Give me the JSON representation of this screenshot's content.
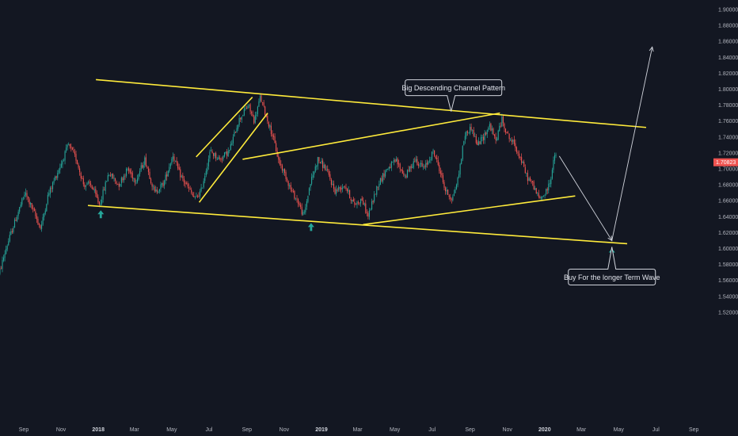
{
  "chart_data": {
    "type": "candlestick",
    "title": "",
    "colors": {
      "background": "#131722",
      "up": "#26a69a",
      "down": "#ef5350",
      "trendline": "#ffeb3b",
      "projection": "#d1d4dc",
      "arrow": "#26a69a",
      "last_price": "#ef5350"
    },
    "y_axis": {
      "ylim": [
        1.51,
        1.915
      ],
      "ticks": [
        "1.90000",
        "1.88000",
        "1.86000",
        "1.84000",
        "1.82000",
        "1.80000",
        "1.78000",
        "1.76000",
        "1.74000",
        "1.72000",
        "1.70000",
        "1.68000",
        "1.66000",
        "1.64000",
        "1.62000",
        "1.60000",
        "1.58000",
        "1.56000",
        "1.54000",
        "1.52000"
      ],
      "last_price": "1.70823"
    },
    "x_axis": {
      "ticks": [
        {
          "label": "Sep",
          "month": "2017-09",
          "bold": false
        },
        {
          "label": "Nov",
          "month": "2017-11",
          "bold": false
        },
        {
          "label": "2018",
          "month": "2018-01",
          "bold": true
        },
        {
          "label": "Mar",
          "month": "2018-03",
          "bold": false
        },
        {
          "label": "May",
          "month": "2018-05",
          "bold": false
        },
        {
          "label": "Jul",
          "month": "2018-07",
          "bold": false
        },
        {
          "label": "Sep",
          "month": "2018-09",
          "bold": false
        },
        {
          "label": "Nov",
          "month": "2018-11",
          "bold": false
        },
        {
          "label": "2019",
          "month": "2019-01",
          "bold": true
        },
        {
          "label": "Mar",
          "month": "2019-03",
          "bold": false
        },
        {
          "label": "May",
          "month": "2019-05",
          "bold": false
        },
        {
          "label": "Jul",
          "month": "2019-07",
          "bold": false
        },
        {
          "label": "Sep",
          "month": "2019-09",
          "bold": false
        },
        {
          "label": "Nov",
          "month": "2019-11",
          "bold": false
        },
        {
          "label": "2020",
          "month": "2020-01",
          "bold": true
        },
        {
          "label": "Mar",
          "month": "2020-03",
          "bold": false
        },
        {
          "label": "May",
          "month": "2020-05",
          "bold": false
        },
        {
          "label": "Jul",
          "month": "2020-07",
          "bold": false
        },
        {
          "label": "Sep",
          "month": "2020-09",
          "bold": false
        }
      ]
    },
    "price_path": [
      [
        "2017-07-20",
        1.555
      ],
      [
        "2017-08-05",
        1.6
      ],
      [
        "2017-08-20",
        1.635
      ],
      [
        "2017-09-05",
        1.67
      ],
      [
        "2017-09-18",
        1.648
      ],
      [
        "2017-10-01",
        1.625
      ],
      [
        "2017-10-12",
        1.665
      ],
      [
        "2017-10-25",
        1.69
      ],
      [
        "2017-11-05",
        1.71
      ],
      [
        "2017-11-15",
        1.73
      ],
      [
        "2017-11-28",
        1.712
      ],
      [
        "2017-12-10",
        1.68
      ],
      [
        "2017-12-22",
        1.68
      ],
      [
        "2018-01-05",
        1.655
      ],
      [
        "2018-01-20",
        1.695
      ],
      [
        "2018-02-05",
        1.68
      ],
      [
        "2018-02-20",
        1.7
      ],
      [
        "2018-03-05",
        1.685
      ],
      [
        "2018-03-20",
        1.712
      ],
      [
        "2018-04-05",
        1.67
      ],
      [
        "2018-04-20",
        1.682
      ],
      [
        "2018-05-05",
        1.718
      ],
      [
        "2018-05-15",
        1.695
      ],
      [
        "2018-05-25",
        1.682
      ],
      [
        "2018-06-10",
        1.662
      ],
      [
        "2018-06-20",
        1.672
      ],
      [
        "2018-07-05",
        1.722
      ],
      [
        "2018-07-20",
        1.712
      ],
      [
        "2018-08-05",
        1.722
      ],
      [
        "2018-08-20",
        1.76
      ],
      [
        "2018-09-05",
        1.78
      ],
      [
        "2018-09-15",
        1.76
      ],
      [
        "2018-09-25",
        1.79
      ],
      [
        "2018-10-05",
        1.765
      ],
      [
        "2018-10-15",
        1.742
      ],
      [
        "2018-10-25",
        1.71
      ],
      [
        "2018-11-05",
        1.692
      ],
      [
        "2018-11-15",
        1.672
      ],
      [
        "2018-11-25",
        1.66
      ],
      [
        "2018-12-05",
        1.64
      ],
      [
        "2018-12-15",
        1.68
      ],
      [
        "2018-12-28",
        1.712
      ],
      [
        "2019-01-10",
        1.7
      ],
      [
        "2019-01-25",
        1.672
      ],
      [
        "2019-02-10",
        1.68
      ],
      [
        "2019-02-25",
        1.655
      ],
      [
        "2019-03-10",
        1.662
      ],
      [
        "2019-03-20",
        1.64
      ],
      [
        "2019-04-05",
        1.68
      ],
      [
        "2019-04-20",
        1.7
      ],
      [
        "2019-05-05",
        1.71
      ],
      [
        "2019-05-20",
        1.69
      ],
      [
        "2019-06-05",
        1.712
      ],
      [
        "2019-06-20",
        1.7
      ],
      [
        "2019-07-05",
        1.722
      ],
      [
        "2019-07-15",
        1.7
      ],
      [
        "2019-07-25",
        1.672
      ],
      [
        "2019-08-05",
        1.662
      ],
      [
        "2019-08-15",
        1.69
      ],
      [
        "2019-08-25",
        1.742
      ],
      [
        "2019-09-05",
        1.752
      ],
      [
        "2019-09-15",
        1.73
      ],
      [
        "2019-09-25",
        1.74
      ],
      [
        "2019-10-05",
        1.755
      ],
      [
        "2019-10-15",
        1.735
      ],
      [
        "2019-10-25",
        1.762
      ],
      [
        "2019-11-05",
        1.74
      ],
      [
        "2019-11-15",
        1.73
      ],
      [
        "2019-11-25",
        1.712
      ],
      [
        "2019-12-05",
        1.69
      ],
      [
        "2019-12-15",
        1.68
      ],
      [
        "2019-12-25",
        1.662
      ],
      [
        "2020-01-05",
        1.67
      ],
      [
        "2020-01-12",
        1.685
      ],
      [
        "2020-01-20",
        1.718
      ]
    ],
    "annotations": {
      "channel_lines": [
        {
          "from": [
            "2017-12-28",
            1.812
          ],
          "to": [
            "2020-06-15",
            1.752
          ]
        },
        {
          "from": [
            "2017-12-15",
            1.654
          ],
          "to": [
            "2020-05-15",
            1.606
          ]
        },
        {
          "from": [
            "2018-08-25",
            1.712
          ],
          "to": [
            "2019-10-20",
            1.77
          ]
        },
        {
          "from": [
            "2019-03-10",
            1.63
          ],
          "to": [
            "2020-02-20",
            1.666
          ]
        },
        {
          "from": [
            "2018-06-10",
            1.715
          ],
          "to": [
            "2018-09-10",
            1.79
          ]
        },
        {
          "from": [
            "2018-06-15",
            1.658
          ],
          "to": [
            "2018-10-05",
            1.77
          ]
        }
      ],
      "projection_path": [
        [
          "2020-01-25",
          1.716
        ],
        [
          "2020-04-20",
          1.61
        ],
        [
          "2020-06-25",
          1.853
        ]
      ],
      "up_arrows": [
        [
          "2018-01-05",
          1.648
        ],
        [
          "2018-12-15",
          1.632
        ],
        [
          "2020-04-20",
          1.6
        ]
      ],
      "notes": [
        {
          "text": "Big Descending Channel Pattern",
          "anchor": [
            "2019-08-01",
            1.772
          ]
        },
        {
          "text": "Buy For the longer Term Wave",
          "anchor": [
            "2020-04-20",
            1.602
          ]
        }
      ]
    }
  }
}
